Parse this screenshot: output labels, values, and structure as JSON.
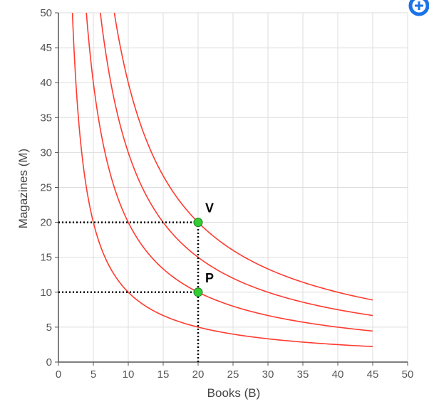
{
  "chart_data": {
    "type": "line",
    "title": "",
    "xlabel": "Books (B)",
    "ylabel": "Magazines (M)",
    "xlim": [
      0,
      50
    ],
    "ylim": [
      0,
      50
    ],
    "xticks": [
      0,
      5,
      10,
      15,
      20,
      25,
      30,
      35,
      40,
      45,
      50
    ],
    "yticks": [
      0,
      5,
      10,
      15,
      20,
      25,
      30,
      35,
      40,
      45,
      50
    ],
    "grid": true,
    "curve_color": "#ff3b30",
    "indifference_constants": [
      100,
      200,
      300,
      400
    ],
    "x_range": [
      2,
      45
    ],
    "points": [
      {
        "label": "V",
        "x": 20,
        "y": 20,
        "color": "#33cc33"
      },
      {
        "label": "P",
        "x": 20,
        "y": 10,
        "color": "#33cc33"
      }
    ],
    "dotted_guides": [
      {
        "from": [
          0,
          20
        ],
        "to": [
          20,
          20
        ]
      },
      {
        "from": [
          0,
          10
        ],
        "to": [
          20,
          10
        ]
      },
      {
        "from": [
          20,
          0
        ],
        "to": [
          20,
          20
        ]
      }
    ]
  },
  "toolbar": {
    "zoom_icon": "zoom-icon",
    "accent": "#1a73e8"
  }
}
